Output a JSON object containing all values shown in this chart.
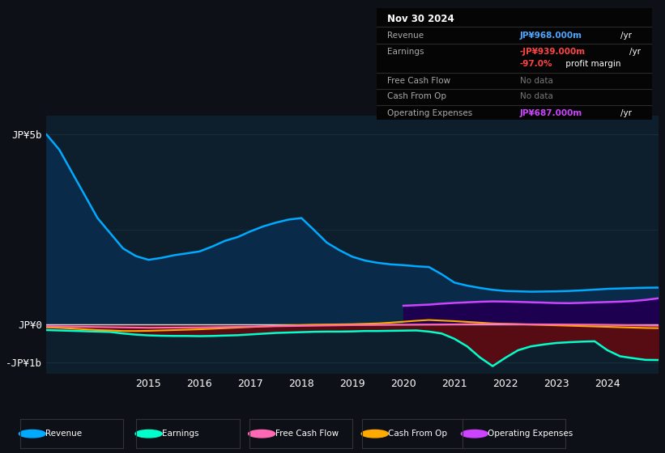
{
  "bg_color": "#0d1117",
  "plot_bg_color": "#0d1f2d",
  "grid_color": "#1a2d3d",
  "zero_line_color": "#dddddd",
  "title_box_bg": "#050505",
  "title_box": {
    "date": "Nov 30 2024",
    "rows": [
      {
        "label": "Revenue",
        "value": "JP¥968.000m",
        "suffix": " /yr",
        "value_color": "#4da6ff"
      },
      {
        "label": "Earnings",
        "value": "-JP¥939.000m",
        "suffix": " /yr",
        "value_color": "#ff4444"
      },
      {
        "label": "",
        "value": "-97.0%",
        "suffix": " profit margin",
        "value_color": "#ff4444"
      },
      {
        "label": "Free Cash Flow",
        "value": "No data",
        "suffix": "",
        "value_color": "#777777"
      },
      {
        "label": "Cash From Op",
        "value": "No data",
        "suffix": "",
        "value_color": "#777777"
      },
      {
        "label": "Operating Expenses",
        "value": "JP¥687.000m",
        "suffix": " /yr",
        "value_color": "#cc44ff"
      }
    ]
  },
  "years": [
    2013.0,
    2013.25,
    2013.5,
    2013.75,
    2014.0,
    2014.25,
    2014.5,
    2014.75,
    2015.0,
    2015.25,
    2015.5,
    2015.75,
    2016.0,
    2016.25,
    2016.5,
    2016.75,
    2017.0,
    2017.25,
    2017.5,
    2017.75,
    2018.0,
    2018.25,
    2018.5,
    2018.75,
    2019.0,
    2019.25,
    2019.5,
    2019.75,
    2020.0,
    2020.25,
    2020.5,
    2020.75,
    2021.0,
    2021.25,
    2021.5,
    2021.75,
    2022.0,
    2022.25,
    2022.5,
    2022.75,
    2023.0,
    2023.25,
    2023.5,
    2023.75,
    2024.0,
    2024.25,
    2024.5,
    2024.75,
    2025.0
  ],
  "revenue": [
    5000,
    4600,
    4000,
    3400,
    2800,
    2400,
    2000,
    1800,
    1700,
    1750,
    1820,
    1870,
    1920,
    2050,
    2200,
    2300,
    2450,
    2580,
    2680,
    2760,
    2800,
    2480,
    2150,
    1950,
    1780,
    1680,
    1620,
    1580,
    1560,
    1530,
    1510,
    1320,
    1100,
    1020,
    960,
    910,
    880,
    870,
    860,
    865,
    870,
    880,
    895,
    915,
    935,
    945,
    955,
    965,
    968
  ],
  "earnings": [
    -150,
    -160,
    -170,
    -180,
    -190,
    -200,
    -240,
    -270,
    -290,
    -300,
    -305,
    -305,
    -310,
    -305,
    -295,
    -285,
    -265,
    -245,
    -225,
    -215,
    -205,
    -195,
    -190,
    -190,
    -185,
    -175,
    -175,
    -170,
    -165,
    -160,
    -190,
    -240,
    -380,
    -580,
    -870,
    -1100,
    -880,
    -680,
    -580,
    -530,
    -490,
    -470,
    -455,
    -445,
    -680,
    -840,
    -890,
    -935,
    -939
  ],
  "free_cash_flow": [
    -50,
    -55,
    -60,
    -65,
    -70,
    -75,
    -80,
    -85,
    -90,
    -88,
    -85,
    -82,
    -80,
    -75,
    -70,
    -65,
    -60,
    -55,
    -50,
    -45,
    -40,
    -35,
    -30,
    -25,
    -20,
    -18,
    -15,
    -12,
    -10,
    -8,
    -5,
    -3,
    0,
    5,
    8,
    10,
    8,
    5,
    2,
    0,
    -2,
    -5,
    -8,
    -10,
    -15,
    -20,
    -25,
    -30,
    -35
  ],
  "cash_from_op": [
    -80,
    -90,
    -110,
    -130,
    -150,
    -160,
    -175,
    -175,
    -170,
    -160,
    -150,
    -140,
    -130,
    -115,
    -100,
    -85,
    -70,
    -55,
    -40,
    -30,
    -20,
    -10,
    -5,
    0,
    5,
    15,
    25,
    45,
    70,
    95,
    115,
    100,
    85,
    65,
    45,
    25,
    15,
    5,
    -5,
    -15,
    -25,
    -35,
    -45,
    -55,
    -65,
    -75,
    -85,
    -95,
    -100
  ],
  "operating_expenses": [
    null,
    null,
    null,
    null,
    null,
    null,
    null,
    null,
    null,
    null,
    null,
    null,
    null,
    null,
    null,
    null,
    null,
    null,
    null,
    null,
    null,
    null,
    null,
    null,
    null,
    null,
    null,
    null,
    490,
    505,
    520,
    545,
    565,
    580,
    595,
    605,
    600,
    592,
    582,
    573,
    562,
    558,
    567,
    578,
    588,
    598,
    615,
    645,
    687
  ],
  "ylim": [
    -1300,
    5500
  ],
  "yticks": [
    -1000,
    0,
    5000
  ],
  "ytick_labels": [
    "-JP¥1b",
    "JP¥0",
    "JP¥5b"
  ],
  "xtick_years": [
    2015,
    2016,
    2017,
    2018,
    2019,
    2020,
    2021,
    2022,
    2023,
    2024
  ],
  "revenue_color": "#00aaff",
  "revenue_fill_color": "#0a2a4a",
  "earnings_color": "#00ffcc",
  "earnings_fill_color": "#5c0a12",
  "free_cash_flow_color": "#ff69b4",
  "cash_from_op_color": "#ffaa00",
  "operating_expenses_color": "#cc44ff",
  "operating_expenses_fill_color": "#1e0050",
  "legend_items": [
    {
      "label": "Revenue",
      "color": "#00aaff"
    },
    {
      "label": "Earnings",
      "color": "#00ffcc"
    },
    {
      "label": "Free Cash Flow",
      "color": "#ff69b4"
    },
    {
      "label": "Cash From Op",
      "color": "#ffaa00"
    },
    {
      "label": "Operating Expenses",
      "color": "#cc44ff"
    }
  ]
}
